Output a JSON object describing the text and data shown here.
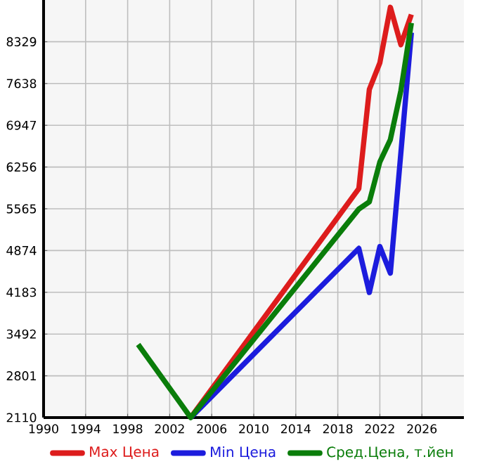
{
  "chart_data": {
    "type": "line",
    "xlim": [
      1990,
      2030
    ],
    "ylim": [
      2110,
      9020
    ],
    "xticks": [
      1990,
      1994,
      1998,
      2002,
      2006,
      2010,
      2014,
      2018,
      2022,
      2026
    ],
    "yticks": [
      2110,
      2801,
      3492,
      4183,
      4874,
      5565,
      6256,
      6947,
      7638,
      8329
    ],
    "grid": true,
    "legend": "bottom",
    "marker": "none",
    "line_style": "solid",
    "series": [
      {
        "name": "Max Цена",
        "color": "#dd1c1c",
        "x": [
          2004,
          2020,
          2021,
          2022,
          2023,
          2024,
          2025
        ],
        "values": [
          2110,
          5900,
          7540,
          7980,
          8900,
          8280,
          8780
        ]
      },
      {
        "name": "Min Цена",
        "color": "#1c1cdd",
        "x": [
          2004,
          2020,
          2021,
          2022,
          2023,
          2025
        ],
        "values": [
          2110,
          4910,
          4180,
          4940,
          4500,
          8480
        ]
      },
      {
        "name": "Сред.Цена, т.йен",
        "color": "#0a7d0a",
        "x": [
          1999,
          2004,
          2020,
          2021,
          2022,
          2023,
          2024,
          2025
        ],
        "values": [
          3320,
          2110,
          5560,
          5680,
          6340,
          6710,
          7520,
          8640
        ]
      }
    ]
  }
}
